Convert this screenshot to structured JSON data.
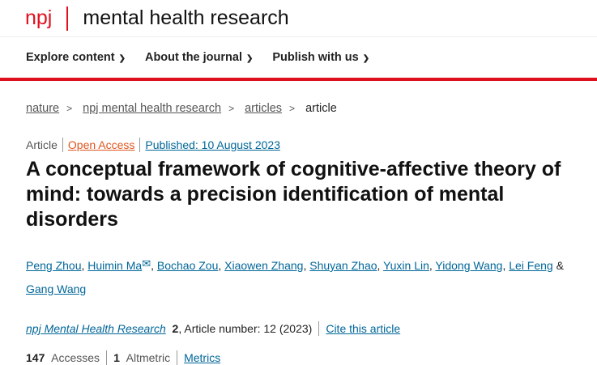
{
  "brand": {
    "logo": "npj",
    "journal": "mental health research"
  },
  "nav": [
    {
      "label": "Explore content"
    },
    {
      "label": "About the journal"
    },
    {
      "label": "Publish with us"
    }
  ],
  "breadcrumb": [
    "nature",
    "npj mental health research",
    "articles",
    "article"
  ],
  "meta": {
    "type": "Article",
    "access": "Open Access",
    "published": "Published: 10 August 2023"
  },
  "title": "A conceptual framework of cognitive-affective theory of mind: towards a precision identification of mental disorders",
  "authors": [
    "Peng Zhou",
    "Huimin Ma",
    "Bochao Zou",
    "Xiaowen Zhang",
    "Shuyan Zhao",
    "Yuxin Lin",
    "Yidong Wang",
    "Lei Feng",
    "Gang Wang"
  ],
  "citation": {
    "journal": "npj Mental Health Research",
    "volume": "2",
    "rest": ", Article number: 12 (2023)",
    "cite_link": "Cite this article"
  },
  "stats": {
    "accesses": "147",
    "accesses_label": "Accesses",
    "altmetric": "1",
    "altmetric_label": "Altmetric",
    "metrics_link": "Metrics"
  }
}
